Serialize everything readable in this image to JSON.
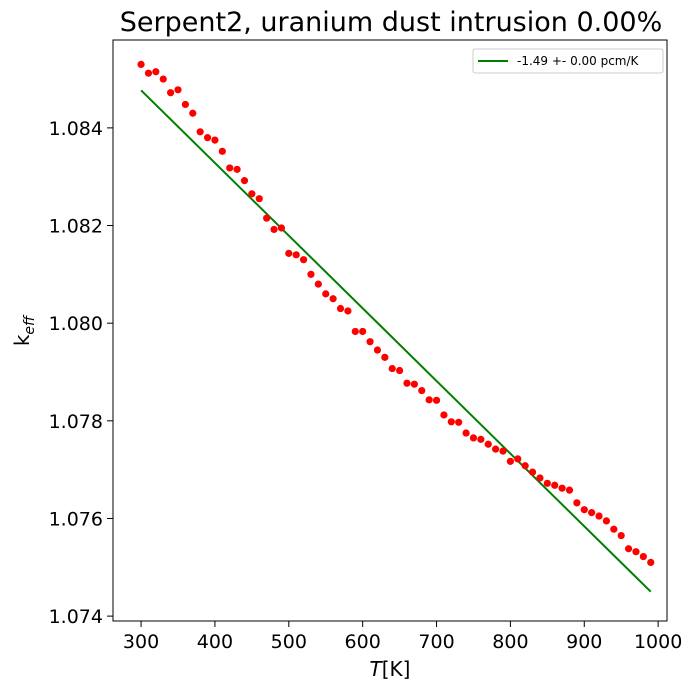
{
  "chart_data": {
    "type": "scatter",
    "title": "Serpent2, uranium dust intrusion  0.00%",
    "xlabel_main": "T",
    "xlabel_unit": "[K]",
    "ylabel_main": "k",
    "ylabel_sub": "eff",
    "xlim": [
      262,
      1012
    ],
    "ylim": [
      1.0739,
      1.0858
    ],
    "xticks": [
      300,
      400,
      500,
      600,
      700,
      800,
      900,
      1000
    ],
    "yticks": [
      1.074,
      1.076,
      1.078,
      1.08,
      1.082,
      1.084
    ],
    "x_tick_labels": [
      "300",
      "400",
      "500",
      "600",
      "700",
      "800",
      "900",
      "1000"
    ],
    "y_tick_labels": [
      "1.074",
      "1.076",
      "1.078",
      "1.080",
      "1.082",
      "1.084"
    ],
    "grid": false,
    "legend_position": "top-right",
    "series": [
      {
        "kind": "line",
        "name": "-1.49 +- 0.00 pcm/K",
        "color": "#008000",
        "x": [
          300,
          990
        ],
        "y": [
          1.08477,
          1.0745
        ]
      },
      {
        "kind": "scatter",
        "color": "#ff0000",
        "x": [
          300,
          310,
          320,
          330,
          340,
          350,
          360,
          370,
          380,
          390,
          400,
          410,
          420,
          430,
          440,
          450,
          460,
          470,
          480,
          490,
          500,
          510,
          520,
          530,
          540,
          550,
          560,
          570,
          580,
          590,
          600,
          610,
          620,
          630,
          640,
          650,
          660,
          670,
          680,
          690,
          700,
          710,
          720,
          730,
          740,
          750,
          760,
          770,
          780,
          790,
          800,
          810,
          820,
          830,
          840,
          850,
          860,
          870,
          880,
          890,
          900,
          910,
          920,
          930,
          940,
          950,
          960,
          970,
          980,
          990
        ],
        "y": [
          1.0853,
          1.08512,
          1.08515,
          1.085,
          1.08472,
          1.08478,
          1.08448,
          1.0843,
          1.08392,
          1.0838,
          1.08375,
          1.08352,
          1.08318,
          1.08315,
          1.08292,
          1.08265,
          1.08255,
          1.08215,
          1.08192,
          1.08195,
          1.08143,
          1.0814,
          1.0813,
          1.081,
          1.0808,
          1.0806,
          1.0805,
          1.0803,
          1.08025,
          1.07983,
          1.07983,
          1.07962,
          1.07945,
          1.0793,
          1.07907,
          1.07903,
          1.07877,
          1.07875,
          1.07862,
          1.07843,
          1.07842,
          1.07812,
          1.07798,
          1.07797,
          1.07775,
          1.07765,
          1.07762,
          1.07752,
          1.07742,
          1.07738,
          1.07717,
          1.07722,
          1.07708,
          1.07695,
          1.07683,
          1.07672,
          1.07668,
          1.07662,
          1.07658,
          1.07632,
          1.07618,
          1.07612,
          1.07605,
          1.07595,
          1.07578,
          1.07565,
          1.07538,
          1.07532,
          1.07522,
          1.0751
        ]
      }
    ]
  }
}
